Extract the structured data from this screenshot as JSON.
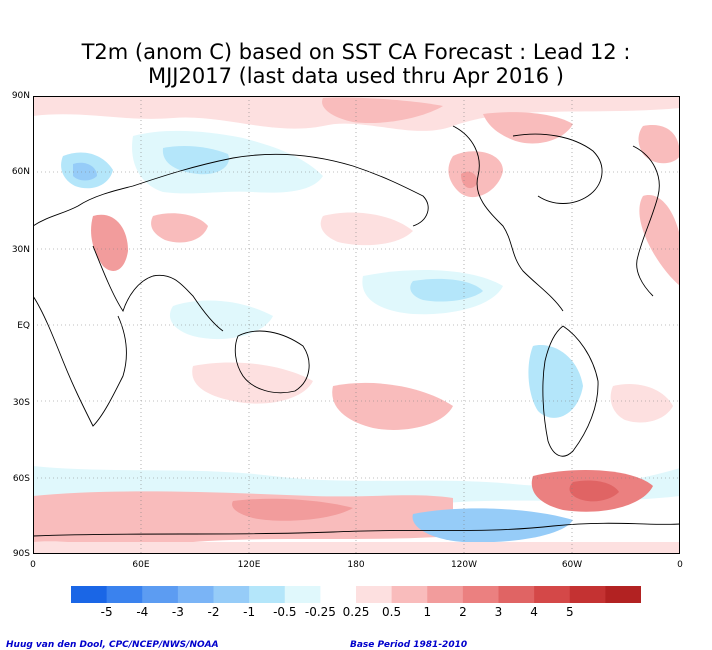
{
  "title": {
    "line1": "T2m (anom C) based on SST CA Forecast : Lead 12 :",
    "line2": "MJJ2017 (last data used thru Apr 2016 )"
  },
  "map": {
    "lat_labels": [
      "90N",
      "60N",
      "30N",
      "EQ",
      "30S",
      "60S",
      "90S"
    ],
    "lon_labels": [
      "0",
      "60E",
      "120E",
      "180",
      "120W",
      "60W",
      "0"
    ],
    "grid": "dotted"
  },
  "colorbar": {
    "colors": [
      "#1a66e6",
      "#3a82ee",
      "#5c9cf2",
      "#7ab4f6",
      "#96ccf8",
      "#b4e6fa",
      "#e0f8fc",
      "#ffffff",
      "#fde0e0",
      "#f9bcbc",
      "#f29c9c",
      "#eb8080",
      "#e06464",
      "#d44848",
      "#c43232",
      "#b22222"
    ],
    "labels": [
      "-5",
      "-4",
      "-3",
      "-2",
      "-1",
      "-0.5",
      "-0.25",
      "0.25",
      "0.5",
      "1",
      "2",
      "3",
      "4",
      "5"
    ]
  },
  "footer": {
    "credit": "Huug van den Dool, CPC/NCEP/NWS/NOAA",
    "base_period": "Base Period 1981-2010"
  }
}
